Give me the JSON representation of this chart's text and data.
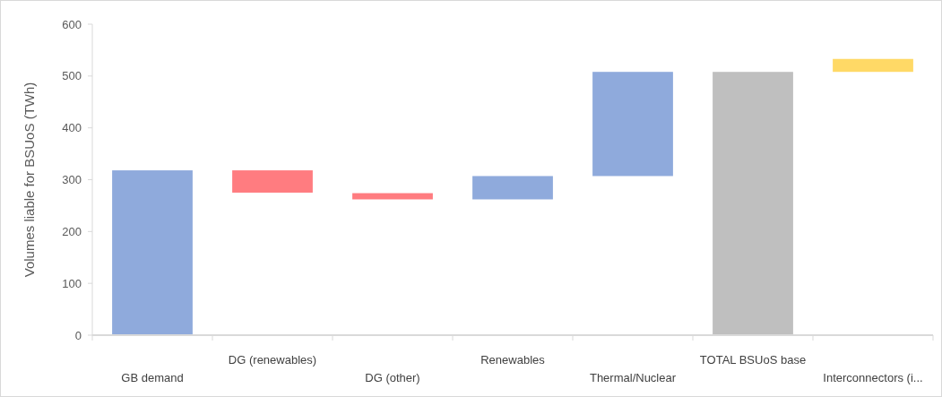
{
  "chart_data": {
    "type": "bar",
    "ylabel": "Volumes liable for BSUoS (TWh)",
    "categories": [
      "GB demand",
      "DG (renewables)",
      "DG (other)",
      "Renewables",
      "Thermal/Nuclear",
      "TOTAL BSUoS base",
      "Interconnectors (i..."
    ],
    "values": [
      318,
      43,
      12,
      45,
      201,
      508,
      25
    ],
    "base": [
      0,
      275,
      262,
      262,
      307,
      0,
      508
    ],
    "colors": [
      "#8faadc",
      "#ff7c80",
      "#ff7c80",
      "#8faadc",
      "#8faadc",
      "#bfbfbf",
      "#ffd966"
    ],
    "ylim": [
      0,
      600
    ],
    "yticks": [
      0,
      100,
      200,
      300,
      400,
      500,
      600
    ],
    "grid": false
  }
}
